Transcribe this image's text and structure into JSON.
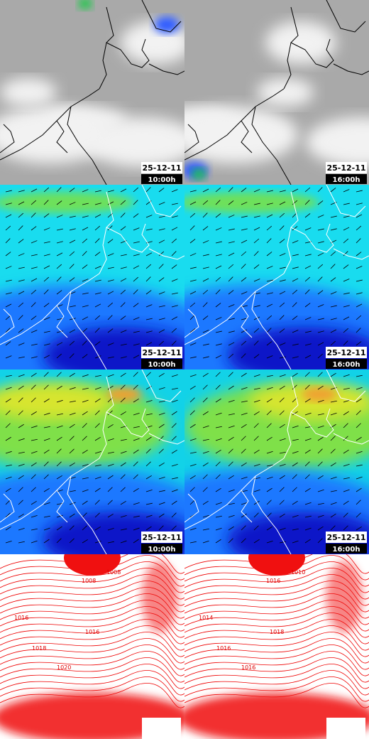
{
  "rows": [
    {
      "kind": "clouds",
      "panels": [
        {
          "date": "25-12-11",
          "time": "10:00h"
        },
        {
          "date": "25-12-11",
          "time": "16:00h"
        }
      ]
    },
    {
      "kind": "wind",
      "panels": [
        {
          "date": "25-12-11",
          "time": "10:00h"
        },
        {
          "date": "25-12-11",
          "time": "16:00h"
        }
      ]
    },
    {
      "kind": "wind-strong",
      "panels": [
        {
          "date": "25-12-11",
          "time": "10:00h"
        },
        {
          "date": "25-12-11",
          "time": "16:00h"
        }
      ]
    },
    {
      "kind": "pressure",
      "panels": [
        {
          "isobar_labels": [
            "1008",
            "1008",
            "1016",
            "1016",
            "1018",
            "1020"
          ]
        },
        {
          "isobar_labels": [
            "1010",
            "1016",
            "1014",
            "1018",
            "1016",
            "1016"
          ]
        }
      ]
    }
  ]
}
